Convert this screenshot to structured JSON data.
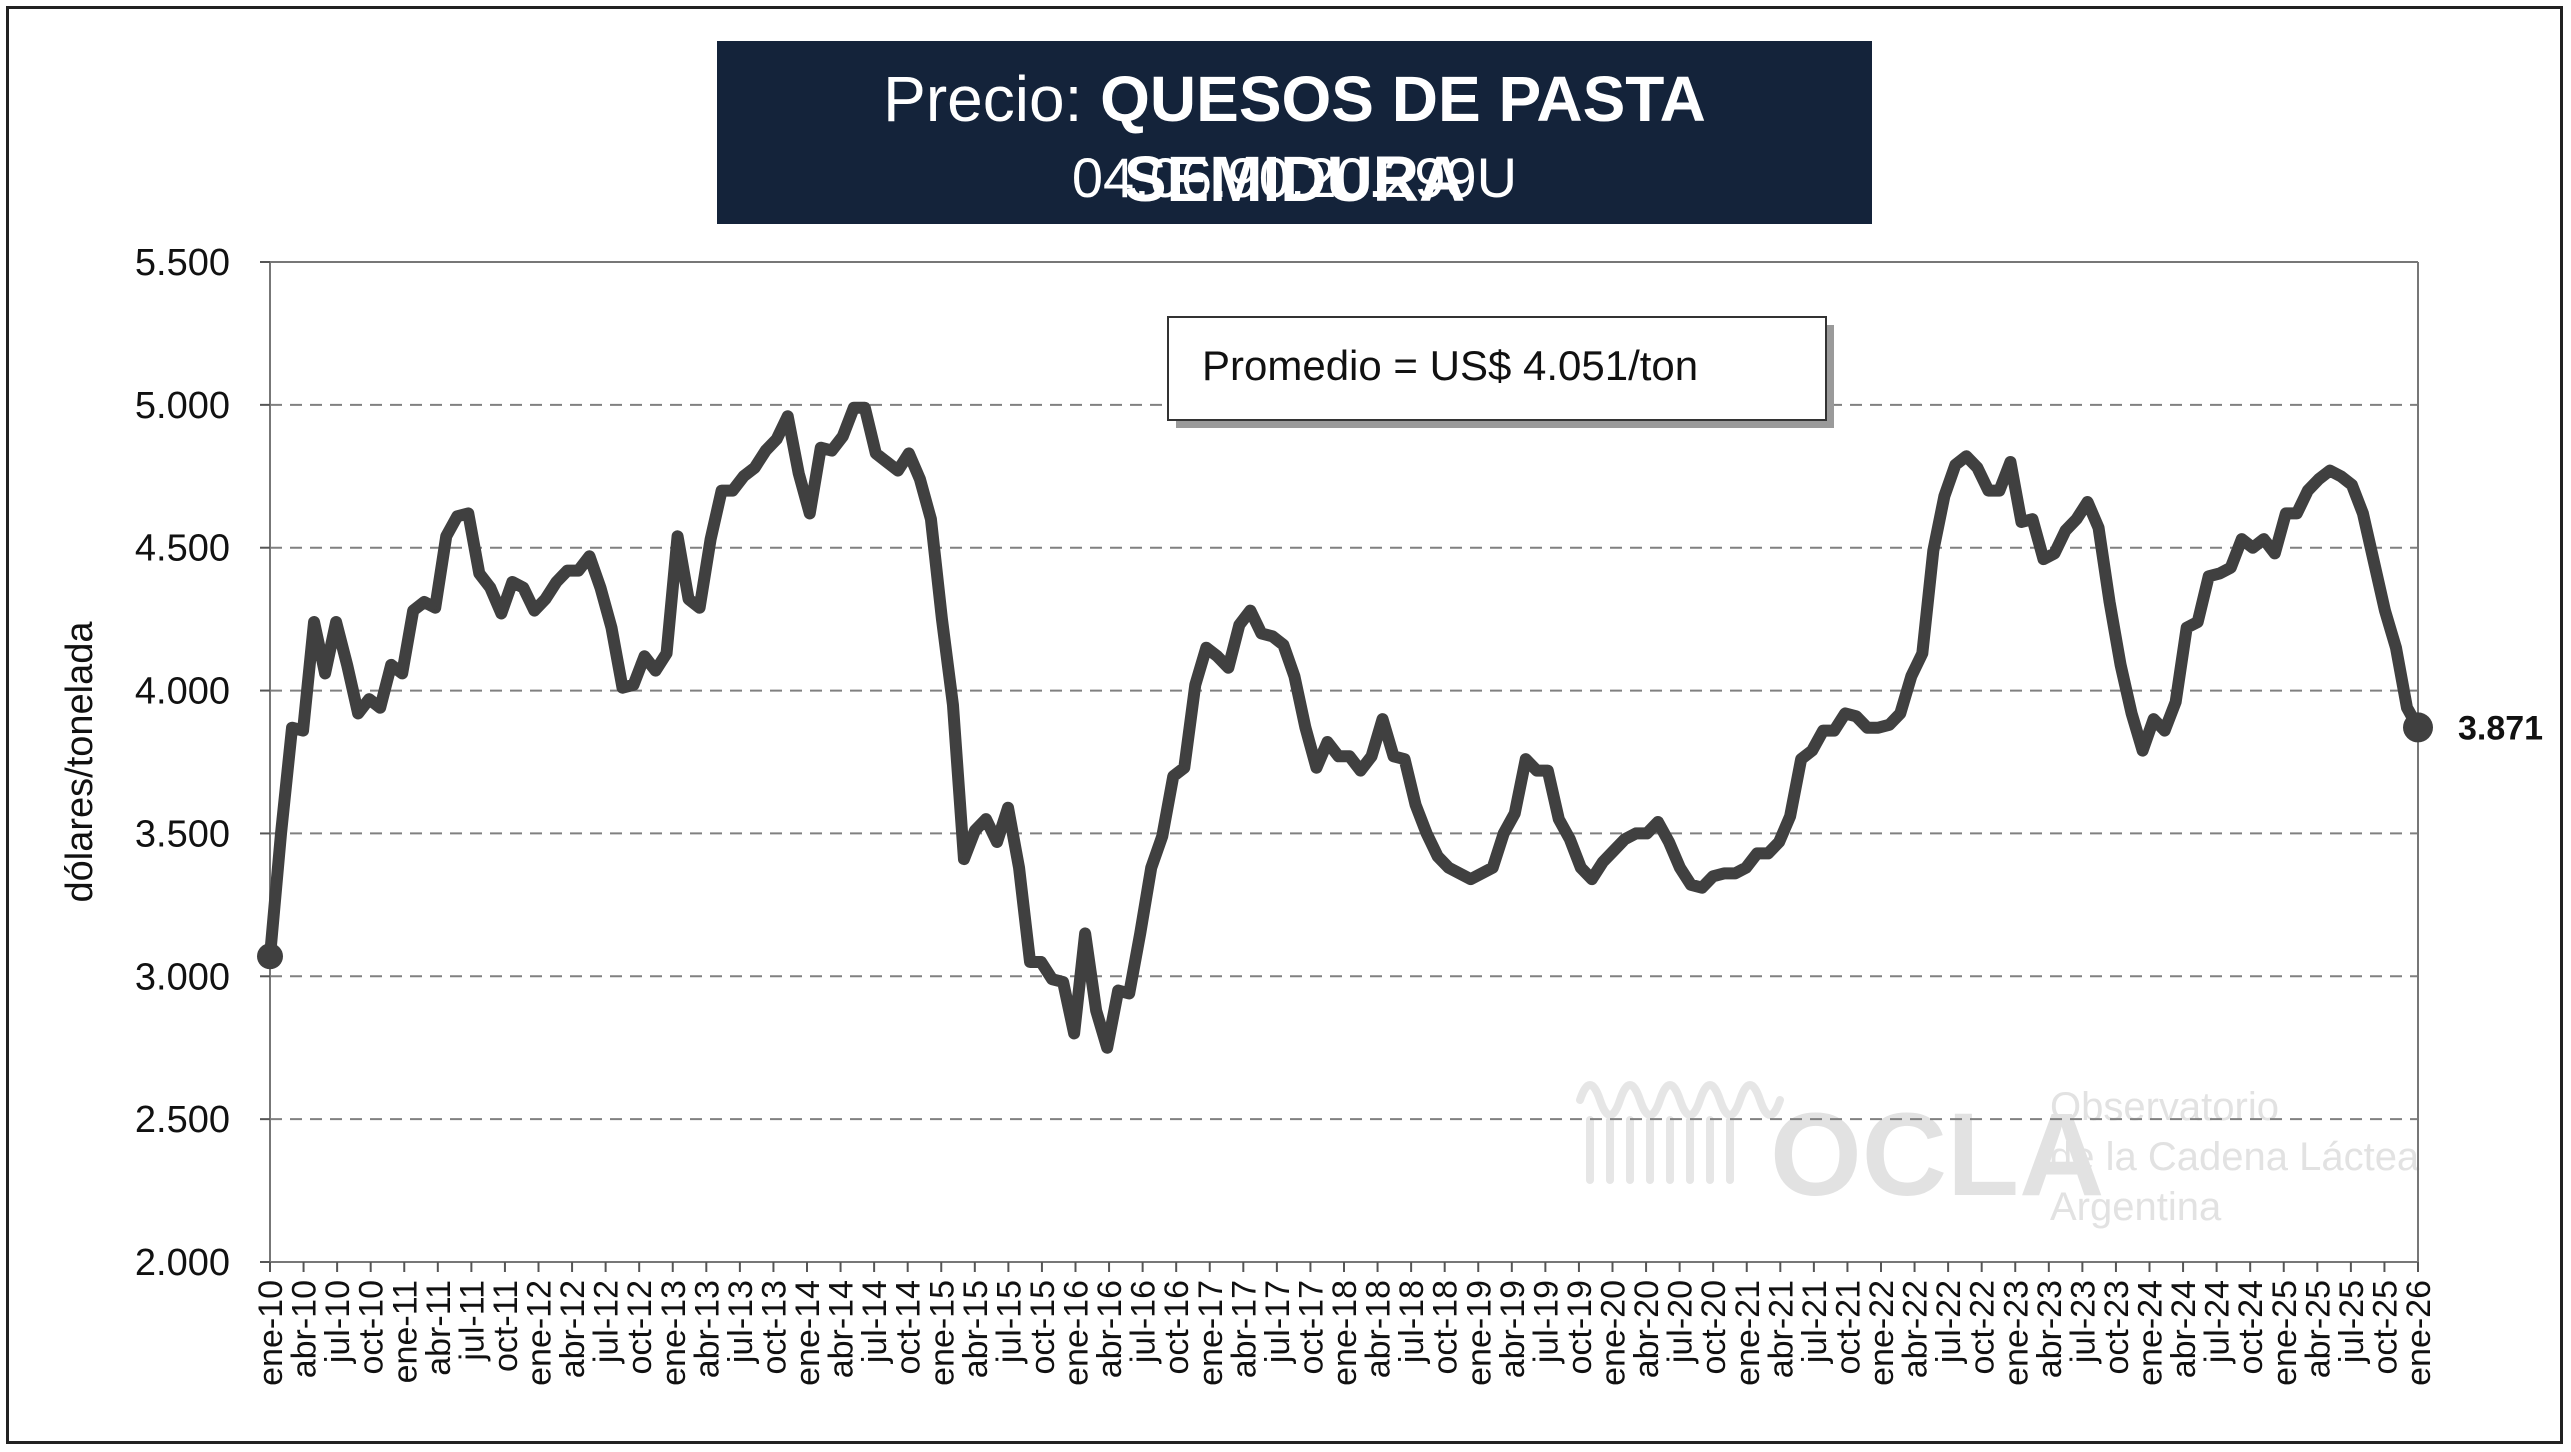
{
  "title": {
    "prefix": "Precio: ",
    "main": "QUESOS DE PASTA SEMIDURA",
    "code": "04.06.90.20.299U"
  },
  "callout": "Promedio = US$ 4.051/ton",
  "end_label": "3.871",
  "watermark": {
    "logo": "OCLA",
    "line1": "Observatorio",
    "line2": "de la Cadena Láctea",
    "line3": "Argentina"
  },
  "colors": {
    "line": "#404040",
    "title_bg": "#14233a",
    "grid": "#808080"
  },
  "chart_data": {
    "type": "line",
    "title": "Precio: QUESOS DE PASTA SEMIDURA",
    "subtitle": "04.06.90.20.299U",
    "ylabel": "dólares/tonelada",
    "xlabel": "",
    "ylim": [
      2000,
      5500
    ],
    "y_ticks": [
      "2.000",
      "2.500",
      "3.000",
      "3.500",
      "4.000",
      "4.500",
      "5.000",
      "5.500"
    ],
    "grid": "horizontal dashed",
    "x_ticks": [
      "ene-10",
      "abr-10",
      "jul-10",
      "oct-10",
      "ene-11",
      "abr-11",
      "jul-11",
      "oct-11",
      "ene-12",
      "abr-12",
      "jul-12",
      "oct-12",
      "ene-13",
      "abr-13",
      "jul-13",
      "oct-13",
      "ene-14",
      "abr-14",
      "jul-14",
      "oct-14",
      "ene-15",
      "abr-15",
      "jul-15",
      "oct-15",
      "ene-16",
      "abr-16",
      "jul-16",
      "oct-16",
      "ene-17",
      "abr-17",
      "jul-17",
      "oct-17",
      "ene-18",
      "abr-18",
      "jul-18",
      "oct-18",
      "ene-19",
      "abr-19",
      "jul-19",
      "oct-19",
      "ene-20",
      "abr-20",
      "jul-20",
      "oct-20",
      "ene-21",
      "abr-21",
      "jul-21",
      "oct-21",
      "ene-22",
      "abr-22",
      "jul-22",
      "oct-22",
      "ene-23",
      "abr-23",
      "jul-23",
      "oct-23",
      "ene-24",
      "abr-24",
      "jul-24",
      "oct-24",
      "ene-25",
      "abr-25",
      "jul-25",
      "oct-25",
      "ene-26"
    ],
    "series": [
      {
        "name": "",
        "start": "ene-10",
        "frequency": "monthly",
        "values": [
          3070,
          3500,
          3870,
          3860,
          4240,
          4060,
          4240,
          4090,
          3920,
          3970,
          3940,
          4090,
          4060,
          4280,
          4310,
          4290,
          4540,
          4610,
          4620,
          4410,
          4360,
          4270,
          4380,
          4360,
          4280,
          4320,
          4380,
          4420,
          4420,
          4470,
          4360,
          4220,
          4010,
          4020,
          4120,
          4070,
          4130,
          4540,
          4320,
          4290,
          4530,
          4700,
          4700,
          4750,
          4780,
          4840,
          4880,
          4960,
          4760,
          4620,
          4850,
          4840,
          4890,
          4990,
          4990,
          4830,
          4800,
          4770,
          4830,
          4740,
          4600,
          4250,
          3950,
          3410,
          3510,
          3550,
          3470,
          3590,
          3380,
          3050,
          3050,
          2990,
          2980,
          2800,
          3150,
          2880,
          2750,
          2950,
          2940,
          3150,
          3380,
          3490,
          3700,
          3730,
          4020,
          4150,
          4120,
          4080,
          4230,
          4280,
          4200,
          4190,
          4160,
          4050,
          3870,
          3730,
          3820,
          3770,
          3770,
          3720,
          3770,
          3900,
          3770,
          3760,
          3600,
          3500,
          3420,
          3380,
          3360,
          3340,
          3360,
          3380,
          3500,
          3570,
          3760,
          3720,
          3720,
          3550,
          3480,
          3380,
          3340,
          3400,
          3440,
          3480,
          3500,
          3500,
          3540,
          3470,
          3380,
          3320,
          3310,
          3350,
          3360,
          3360,
          3380,
          3430,
          3430,
          3470,
          3560,
          3760,
          3790,
          3860,
          3860,
          3920,
          3910,
          3870,
          3870,
          3880,
          3920,
          4050,
          4130,
          4490,
          4680,
          4790,
          4820,
          4780,
          4700,
          4700,
          4800,
          4590,
          4600,
          4460,
          4480,
          4560,
          4600,
          4660,
          4570,
          4310,
          4090,
          3920,
          3790,
          3900,
          3860,
          3960,
          4220,
          4240,
          4400,
          4410,
          4430,
          4530,
          4500,
          4530,
          4480,
          4620,
          4620,
          4700,
          4740,
          4770,
          4750,
          4720,
          4620,
          4450,
          4280,
          4150,
          3940,
          3871
        ]
      }
    ]
  }
}
